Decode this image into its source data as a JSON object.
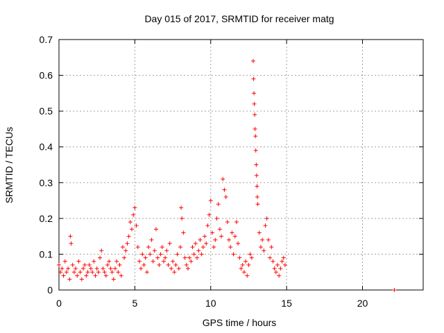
{
  "chart_data": {
    "type": "scatter",
    "title": "Day 015 of 2017, SRMTID for receiver matg",
    "xlabel": "GPS time / hours",
    "ylabel": "SRMTID / TECUs",
    "xlim": [
      0,
      24
    ],
    "ylim": [
      0,
      0.7
    ],
    "xticks": [
      0,
      5,
      10,
      15,
      20
    ],
    "xtick_labels": [
      "0",
      "5",
      "10",
      "15",
      "20"
    ],
    "yticks": [
      0,
      0.1,
      0.2,
      0.3,
      0.4,
      0.5,
      0.6,
      0.7
    ],
    "ytick_labels": [
      "0",
      "0.1",
      "0.2",
      "0.3",
      "0.4",
      "0.5",
      "0.6",
      "0.7"
    ],
    "grid": true,
    "marker": "+",
    "color": "#ff0000",
    "series": [
      {
        "name": "SRMTID",
        "points": [
          [
            0.0,
            0.07
          ],
          [
            0.1,
            0.05
          ],
          [
            0.2,
            0.06
          ],
          [
            0.3,
            0.04
          ],
          [
            0.4,
            0.08
          ],
          [
            0.5,
            0.05
          ],
          [
            0.6,
            0.06
          ],
          [
            0.7,
            0.03
          ],
          [
            0.75,
            0.15
          ],
          [
            0.8,
            0.13
          ],
          [
            0.9,
            0.07
          ],
          [
            1.0,
            0.05
          ],
          [
            1.1,
            0.06
          ],
          [
            1.2,
            0.04
          ],
          [
            1.3,
            0.08
          ],
          [
            1.4,
            0.05
          ],
          [
            1.5,
            0.03
          ],
          [
            1.6,
            0.06
          ],
          [
            1.7,
            0.07
          ],
          [
            1.8,
            0.04
          ],
          [
            1.9,
            0.05
          ],
          [
            2.0,
            0.07
          ],
          [
            2.1,
            0.06
          ],
          [
            2.2,
            0.05
          ],
          [
            2.3,
            0.08
          ],
          [
            2.4,
            0.04
          ],
          [
            2.5,
            0.06
          ],
          [
            2.6,
            0.05
          ],
          [
            2.7,
            0.09
          ],
          [
            2.8,
            0.11
          ],
          [
            2.9,
            0.06
          ],
          [
            3.0,
            0.05
          ],
          [
            3.1,
            0.04
          ],
          [
            3.2,
            0.07
          ],
          [
            3.3,
            0.08
          ],
          [
            3.4,
            0.06
          ],
          [
            3.5,
            0.05
          ],
          [
            3.6,
            0.03
          ],
          [
            3.7,
            0.06
          ],
          [
            3.8,
            0.08
          ],
          [
            3.9,
            0.05
          ],
          [
            4.0,
            0.07
          ],
          [
            4.1,
            0.04
          ],
          [
            4.2,
            0.12
          ],
          [
            4.3,
            0.09
          ],
          [
            4.4,
            0.11
          ],
          [
            4.5,
            0.13
          ],
          [
            4.6,
            0.15
          ],
          [
            4.7,
            0.19
          ],
          [
            4.8,
            0.17
          ],
          [
            4.9,
            0.21
          ],
          [
            5.0,
            0.23
          ],
          [
            5.1,
            0.18
          ],
          [
            5.2,
            0.12
          ],
          [
            5.3,
            0.08
          ],
          [
            5.4,
            0.06
          ],
          [
            5.5,
            0.1
          ],
          [
            5.6,
            0.07
          ],
          [
            5.7,
            0.09
          ],
          [
            5.8,
            0.05
          ],
          [
            5.9,
            0.12
          ],
          [
            6.0,
            0.1
          ],
          [
            6.1,
            0.14
          ],
          [
            6.2,
            0.08
          ],
          [
            6.3,
            0.11
          ],
          [
            6.4,
            0.17
          ],
          [
            6.5,
            0.09
          ],
          [
            6.6,
            0.07
          ],
          [
            6.7,
            0.1
          ],
          [
            6.8,
            0.12
          ],
          [
            6.9,
            0.08
          ],
          [
            7.0,
            0.09
          ],
          [
            7.1,
            0.11
          ],
          [
            7.2,
            0.07
          ],
          [
            7.3,
            0.13
          ],
          [
            7.4,
            0.06
          ],
          [
            7.5,
            0.08
          ],
          [
            7.6,
            0.05
          ],
          [
            7.7,
            0.07
          ],
          [
            7.8,
            0.1
          ],
          [
            7.9,
            0.06
          ],
          [
            8.0,
            0.12
          ],
          [
            8.05,
            0.23
          ],
          [
            8.1,
            0.2
          ],
          [
            8.2,
            0.16
          ],
          [
            8.3,
            0.09
          ],
          [
            8.4,
            0.07
          ],
          [
            8.5,
            0.06
          ],
          [
            8.6,
            0.09
          ],
          [
            8.7,
            0.08
          ],
          [
            8.8,
            0.12
          ],
          [
            8.9,
            0.1
          ],
          [
            9.0,
            0.13
          ],
          [
            9.1,
            0.09
          ],
          [
            9.2,
            0.11
          ],
          [
            9.3,
            0.14
          ],
          [
            9.4,
            0.1
          ],
          [
            9.5,
            0.12
          ],
          [
            9.6,
            0.15
          ],
          [
            9.7,
            0.13
          ],
          [
            9.8,
            0.18
          ],
          [
            9.9,
            0.21
          ],
          [
            10.0,
            0.25
          ],
          [
            10.1,
            0.16
          ],
          [
            10.2,
            0.12
          ],
          [
            10.3,
            0.14
          ],
          [
            10.4,
            0.2
          ],
          [
            10.5,
            0.24
          ],
          [
            10.6,
            0.17
          ],
          [
            10.7,
            0.15
          ],
          [
            10.8,
            0.31
          ],
          [
            10.9,
            0.28
          ],
          [
            11.0,
            0.26
          ],
          [
            11.1,
            0.19
          ],
          [
            11.2,
            0.14
          ],
          [
            11.3,
            0.12
          ],
          [
            11.4,
            0.16
          ],
          [
            11.5,
            0.1
          ],
          [
            11.6,
            0.15
          ],
          [
            11.7,
            0.19
          ],
          [
            11.8,
            0.13
          ],
          [
            11.9,
            0.09
          ],
          [
            12.0,
            0.06
          ],
          [
            12.1,
            0.07
          ],
          [
            12.2,
            0.05
          ],
          [
            12.3,
            0.08
          ],
          [
            12.4,
            0.04
          ],
          [
            12.5,
            0.07
          ],
          [
            12.6,
            0.1
          ],
          [
            12.7,
            0.09
          ],
          [
            12.8,
            0.64
          ],
          [
            12.82,
            0.59
          ],
          [
            12.85,
            0.55
          ],
          [
            12.87,
            0.52
          ],
          [
            12.9,
            0.49
          ],
          [
            12.92,
            0.45
          ],
          [
            12.95,
            0.43
          ],
          [
            12.97,
            0.39
          ],
          [
            13.0,
            0.35
          ],
          [
            13.02,
            0.32
          ],
          [
            13.05,
            0.29
          ],
          [
            13.07,
            0.26
          ],
          [
            13.1,
            0.24
          ],
          [
            13.2,
            0.16
          ],
          [
            13.3,
            0.12
          ],
          [
            13.4,
            0.14
          ],
          [
            13.5,
            0.11
          ],
          [
            13.6,
            0.18
          ],
          [
            13.7,
            0.2
          ],
          [
            13.8,
            0.14
          ],
          [
            13.9,
            0.09
          ],
          [
            14.0,
            0.12
          ],
          [
            14.1,
            0.08
          ],
          [
            14.2,
            0.06
          ],
          [
            14.3,
            0.05
          ],
          [
            14.4,
            0.07
          ],
          [
            14.5,
            0.04
          ],
          [
            14.6,
            0.06
          ],
          [
            14.7,
            0.08
          ],
          [
            14.8,
            0.09
          ],
          [
            14.9,
            0.07
          ],
          [
            22.1,
            0.0
          ]
        ]
      }
    ]
  }
}
